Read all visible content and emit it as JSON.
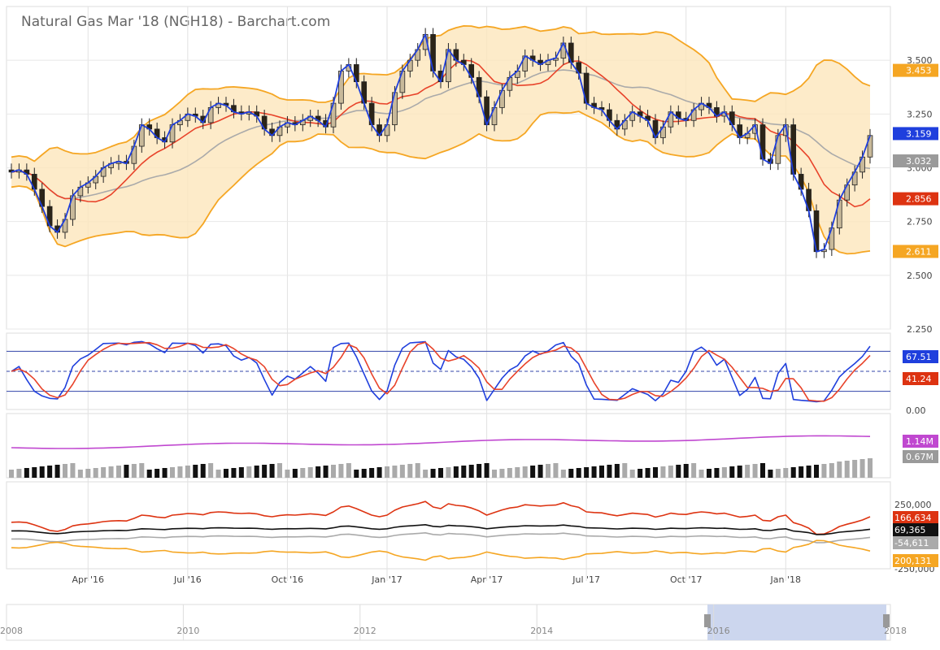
{
  "chart_title": "Natural Gas Mar '18 (NGH18) - Barchart.com",
  "chart_data": {
    "type": "candlestick",
    "title": "Natural Gas Mar '18 (NGH18) - Barchart.com",
    "x_tick_labels": [
      "Apr '16",
      "Jul '16",
      "Oct '16",
      "Jan '17",
      "Apr '17",
      "Jul '17",
      "Oct '17",
      "Jan '18"
    ],
    "price_panel": {
      "yticks": [
        "3.500",
        "3.250",
        "3.000",
        "2.750",
        "2.500",
        "2.250"
      ],
      "ylim": [
        2.25,
        3.75
      ],
      "close": [
        2.98,
        2.99,
        2.97,
        2.9,
        2.82,
        2.73,
        2.7,
        2.76,
        2.87,
        2.91,
        2.93,
        2.96,
        3.0,
        3.02,
        3.03,
        3.02,
        3.1,
        3.2,
        3.18,
        3.14,
        3.12,
        3.2,
        3.22,
        3.25,
        3.24,
        3.21,
        3.28,
        3.3,
        3.29,
        3.26,
        3.25,
        3.26,
        3.24,
        3.18,
        3.15,
        3.19,
        3.21,
        3.2,
        3.22,
        3.24,
        3.22,
        3.19,
        3.3,
        3.45,
        3.48,
        3.4,
        3.3,
        3.2,
        3.15,
        3.2,
        3.35,
        3.45,
        3.5,
        3.55,
        3.62,
        3.45,
        3.4,
        3.55,
        3.5,
        3.48,
        3.42,
        3.33,
        3.2,
        3.28,
        3.36,
        3.42,
        3.45,
        3.52,
        3.5,
        3.48,
        3.5,
        3.51,
        3.58,
        3.49,
        3.44,
        3.3,
        3.28,
        3.27,
        3.22,
        3.18,
        3.22,
        3.26,
        3.24,
        3.22,
        3.14,
        3.19,
        3.26,
        3.23,
        3.22,
        3.27,
        3.3,
        3.28,
        3.24,
        3.26,
        3.2,
        3.14,
        3.16,
        3.2,
        3.04,
        3.02,
        3.15,
        3.2,
        2.97,
        2.9,
        2.8,
        2.61,
        2.62,
        2.72,
        2.85,
        2.92,
        2.98,
        3.05,
        3.15
      ]
    },
    "indicators": {
      "bollinger_upper": "3.453",
      "close_marker": "3.159",
      "moving_average_grey": "3.032",
      "moving_average_red": "2.856",
      "bollinger_lower": "2.611"
    },
    "stochastic_panel": {
      "k": "67.51",
      "d": "41.24",
      "ytick": "0.00"
    },
    "volume_panel": {
      "volume": "1.14M",
      "average": "0.67M"
    },
    "commitment_panel": {
      "yticks": [
        "250,000",
        "-250,000"
      ],
      "series": [
        "166,634",
        "69,365",
        "-54,611",
        "200,131"
      ],
      "colors": [
        "#dd3311",
        "#111111",
        "#aaaaaa",
        "#f5a623"
      ]
    },
    "navigator": {
      "years": [
        "2008",
        "2010",
        "2012",
        "2014",
        "2016",
        "2018"
      ]
    },
    "colors": {
      "band": "#f5a623",
      "band_fill": "#fde6bb",
      "blue": "#1f3fdd",
      "red": "#e8432a",
      "grey_ma": "#aaaaaa",
      "purple": "#c048d0"
    }
  }
}
